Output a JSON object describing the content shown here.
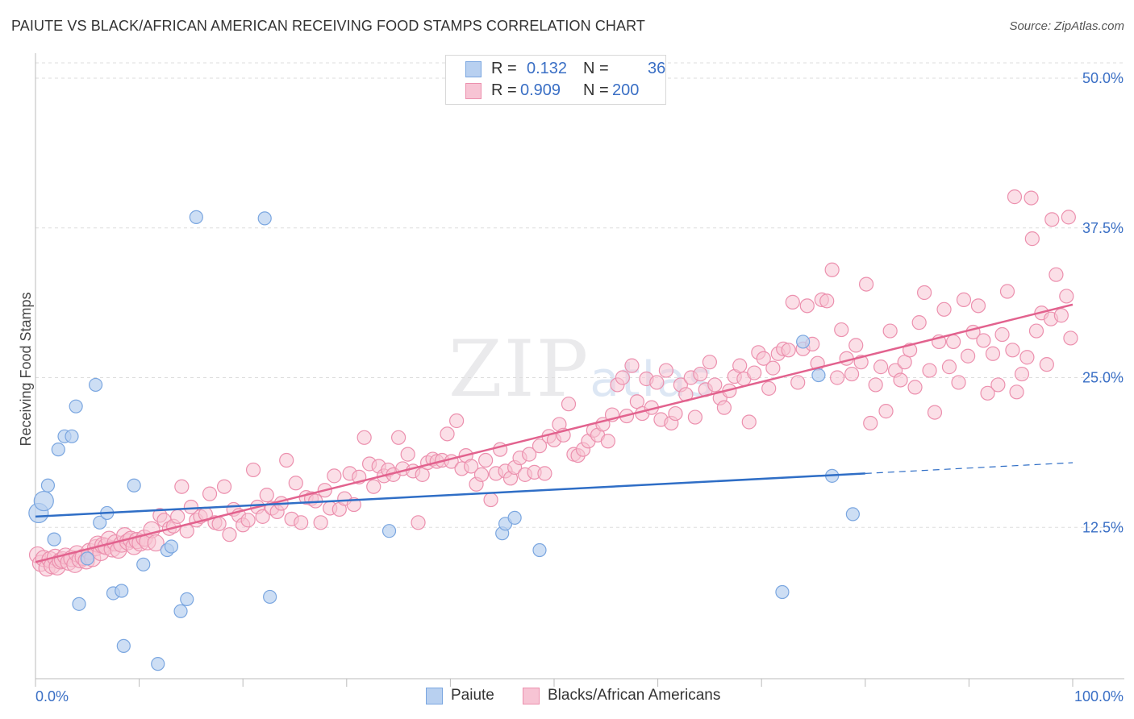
{
  "header": {
    "title": "PAIUTE VS BLACK/AFRICAN AMERICAN RECEIVING FOOD STAMPS CORRELATION CHART",
    "source": "Source: ZipAtlas.com"
  },
  "watermark": {
    "zip": "ZIP",
    "atlas": "atlas"
  },
  "legend": {
    "rows": [
      {
        "r_label": "R =",
        "r_value": "0.132",
        "n_label": "N =",
        "n_value": "36",
        "fill": "#b8d0f0",
        "stroke": "#7aa6e0"
      },
      {
        "r_label": "R =",
        "r_value": "0.909",
        "n_label": "N =",
        "n_value": "200",
        "fill": "#f7c4d4",
        "stroke": "#ec90ae"
      }
    ]
  },
  "bottom_legend": [
    {
      "label": "Paiute",
      "fill": "#b8d0f0",
      "stroke": "#7aa6e0"
    },
    {
      "label": "Blacks/African Americans",
      "fill": "#f7c4d4",
      "stroke": "#ec90ae"
    }
  ],
  "chart_data": {
    "type": "scatter",
    "title": "PAIUTE VS BLACK/AFRICAN AMERICAN RECEIVING FOOD STAMPS CORRELATION CHART",
    "xlabel": "",
    "ylabel": "Receiving Food Stamps",
    "xlim": [
      0,
      100
    ],
    "ylim": [
      0,
      50
    ],
    "x_tick_labels": [
      "0.0%",
      "100.0%"
    ],
    "y_ticks": [
      12.5,
      25.0,
      37.5,
      50.0
    ],
    "y_tick_labels": [
      "12.5%",
      "25.0%",
      "37.5%",
      "50.0%"
    ],
    "grid": "horizontal dashed",
    "legend_position": "top-center",
    "colors": {
      "paiute_fill": "#b8d0f0",
      "paiute_stroke": "#7aa6e0",
      "paiute_line": "#2f6ec6",
      "black_fill": "#f7c4d4",
      "black_stroke": "#ec90ae",
      "black_line": "#e2628e",
      "axis_text": "#3a6fc5",
      "grid": "#dddddd"
    },
    "series": [
      {
        "name": "Paiute",
        "r": 0.132,
        "n": 36,
        "trend": {
          "x": [
            0,
            80,
            100
          ],
          "y": [
            13.4,
            17.0,
            17.9
          ],
          "solid_until": 80
        },
        "points": [
          [
            0.3,
            13.7
          ],
          [
            0.8,
            14.7
          ],
          [
            1.2,
            16.0
          ],
          [
            1.8,
            11.5
          ],
          [
            2.2,
            19.0
          ],
          [
            2.8,
            20.1
          ],
          [
            3.5,
            20.1
          ],
          [
            3.9,
            22.6
          ],
          [
            4.2,
            6.1
          ],
          [
            5.0,
            9.9
          ],
          [
            5.8,
            24.4
          ],
          [
            6.2,
            12.9
          ],
          [
            6.9,
            13.7
          ],
          [
            7.5,
            7.0
          ],
          [
            8.3,
            7.2
          ],
          [
            8.5,
            2.6
          ],
          [
            9.5,
            16.0
          ],
          [
            10.4,
            9.4
          ],
          [
            11.8,
            1.1
          ],
          [
            12.7,
            10.6
          ],
          [
            13.1,
            10.9
          ],
          [
            14.0,
            5.5
          ],
          [
            14.6,
            6.5
          ],
          [
            15.5,
            38.4
          ],
          [
            22.1,
            38.3
          ],
          [
            22.6,
            6.7
          ],
          [
            34.1,
            12.2
          ],
          [
            45.0,
            12.0
          ],
          [
            45.3,
            12.8
          ],
          [
            46.2,
            13.3
          ],
          [
            48.6,
            10.6
          ],
          [
            72.0,
            7.1
          ],
          [
            74.0,
            28.0
          ],
          [
            75.5,
            25.2
          ],
          [
            76.8,
            16.8
          ],
          [
            78.8,
            13.6
          ]
        ]
      },
      {
        "name": "Blacks/African Americans",
        "r": 0.909,
        "n": 200,
        "trend": {
          "x": [
            0,
            100
          ],
          "y": [
            9.6,
            31.1
          ]
        },
        "points": [
          [
            0.2,
            10.2
          ],
          [
            0.5,
            9.5
          ],
          [
            0.8,
            9.9
          ],
          [
            1.1,
            9.1
          ],
          [
            1.4,
            9.8
          ],
          [
            1.6,
            9.3
          ],
          [
            1.9,
            10.0
          ],
          [
            2.1,
            9.2
          ],
          [
            2.4,
            9.7
          ],
          [
            2.6,
            9.8
          ],
          [
            2.9,
            10.1
          ],
          [
            3.2,
            9.6
          ],
          [
            3.5,
            9.9
          ],
          [
            3.8,
            9.4
          ],
          [
            4.0,
            10.3
          ],
          [
            4.3,
            9.8
          ],
          [
            4.6,
            10.0
          ],
          [
            4.9,
            9.7
          ],
          [
            5.2,
            10.5
          ],
          [
            5.5,
            9.9
          ],
          [
            5.8,
            10.8
          ],
          [
            6.0,
            11.1
          ],
          [
            6.3,
            10.4
          ],
          [
            6.5,
            11.0
          ],
          [
            6.8,
            10.9
          ],
          [
            7.1,
            11.5
          ],
          [
            7.4,
            10.7
          ],
          [
            7.7,
            11.2
          ],
          [
            8.0,
            10.6
          ],
          [
            8.3,
            11.1
          ],
          [
            8.6,
            11.8
          ],
          [
            8.9,
            11.3
          ],
          [
            9.2,
            11.5
          ],
          [
            9.5,
            10.9
          ],
          [
            9.8,
            11.4
          ],
          [
            10.1,
            11.2
          ],
          [
            10.5,
            11.6
          ],
          [
            10.8,
            11.3
          ],
          [
            11.2,
            12.3
          ],
          [
            11.6,
            11.2
          ],
          [
            12.0,
            13.5
          ],
          [
            12.4,
            13.1
          ],
          [
            12.9,
            12.4
          ],
          [
            13.3,
            12.6
          ],
          [
            13.7,
            13.4
          ],
          [
            14.1,
            15.9
          ],
          [
            14.6,
            12.2
          ],
          [
            15.0,
            14.2
          ],
          [
            15.5,
            13.1
          ],
          [
            15.9,
            13.4
          ],
          [
            16.4,
            13.6
          ],
          [
            16.8,
            15.3
          ],
          [
            17.3,
            12.9
          ],
          [
            17.7,
            12.8
          ],
          [
            18.2,
            15.9
          ],
          [
            18.7,
            11.9
          ],
          [
            19.1,
            14.0
          ],
          [
            19.6,
            13.5
          ],
          [
            20.0,
            12.7
          ],
          [
            20.5,
            13.1
          ],
          [
            21.0,
            17.3
          ],
          [
            21.4,
            14.2
          ],
          [
            21.9,
            13.4
          ],
          [
            22.3,
            15.2
          ],
          [
            22.8,
            14.1
          ],
          [
            23.3,
            13.8
          ],
          [
            23.7,
            14.5
          ],
          [
            24.2,
            18.1
          ],
          [
            24.7,
            13.2
          ],
          [
            25.1,
            16.2
          ],
          [
            25.6,
            12.9
          ],
          [
            26.1,
            15.0
          ],
          [
            26.6,
            14.9
          ],
          [
            27.0,
            14.7
          ],
          [
            27.5,
            12.9
          ],
          [
            27.9,
            15.6
          ],
          [
            28.4,
            14.1
          ],
          [
            28.8,
            16.8
          ],
          [
            29.3,
            14.0
          ],
          [
            29.8,
            14.9
          ],
          [
            30.3,
            17.0
          ],
          [
            30.7,
            14.4
          ],
          [
            31.2,
            16.7
          ],
          [
            31.7,
            20.0
          ],
          [
            32.2,
            17.8
          ],
          [
            32.6,
            15.9
          ],
          [
            33.1,
            17.6
          ],
          [
            33.6,
            16.8
          ],
          [
            34.0,
            17.3
          ],
          [
            34.5,
            16.9
          ],
          [
            35.0,
            20.0
          ],
          [
            35.4,
            17.4
          ],
          [
            35.9,
            18.6
          ],
          [
            36.4,
            17.2
          ],
          [
            36.9,
            12.9
          ],
          [
            37.3,
            16.9
          ],
          [
            37.8,
            17.9
          ],
          [
            38.3,
            18.2
          ],
          [
            38.7,
            18.0
          ],
          [
            39.2,
            18.1
          ],
          [
            39.7,
            20.3
          ],
          [
            40.1,
            18.0
          ],
          [
            40.6,
            21.4
          ],
          [
            41.1,
            17.4
          ],
          [
            41.5,
            18.5
          ],
          [
            42.0,
            17.6
          ],
          [
            42.5,
            16.1
          ],
          [
            43.0,
            16.9
          ],
          [
            43.4,
            18.1
          ],
          [
            43.9,
            14.8
          ],
          [
            44.4,
            17.0
          ],
          [
            44.8,
            19.0
          ],
          [
            45.3,
            17.2
          ],
          [
            45.8,
            16.6
          ],
          [
            46.2,
            17.5
          ],
          [
            46.7,
            18.3
          ],
          [
            47.2,
            16.9
          ],
          [
            47.6,
            18.6
          ],
          [
            48.1,
            17.1
          ],
          [
            48.6,
            19.3
          ],
          [
            49.1,
            17.0
          ],
          [
            49.5,
            20.1
          ],
          [
            50.0,
            19.8
          ],
          [
            50.5,
            21.1
          ],
          [
            50.9,
            20.2
          ],
          [
            51.4,
            22.8
          ],
          [
            51.9,
            18.6
          ],
          [
            52.3,
            18.5
          ],
          [
            52.8,
            19.0
          ],
          [
            53.3,
            19.7
          ],
          [
            53.8,
            20.6
          ],
          [
            54.2,
            20.2
          ],
          [
            54.7,
            21.1
          ],
          [
            55.2,
            19.7
          ],
          [
            55.6,
            21.9
          ],
          [
            56.1,
            24.4
          ],
          [
            56.6,
            25.0
          ],
          [
            57.0,
            21.8
          ],
          [
            57.5,
            26.0
          ],
          [
            58.0,
            23.0
          ],
          [
            58.5,
            22.0
          ],
          [
            58.9,
            24.9
          ],
          [
            59.4,
            22.5
          ],
          [
            59.9,
            24.6
          ],
          [
            60.3,
            21.5
          ],
          [
            60.8,
            25.6
          ],
          [
            61.3,
            21.2
          ],
          [
            61.7,
            22.0
          ],
          [
            62.2,
            24.4
          ],
          [
            62.7,
            23.6
          ],
          [
            63.2,
            25.0
          ],
          [
            63.6,
            21.7
          ],
          [
            64.1,
            25.3
          ],
          [
            64.6,
            24.0
          ],
          [
            65.0,
            26.3
          ],
          [
            65.5,
            24.4
          ],
          [
            66.0,
            23.3
          ],
          [
            66.4,
            22.5
          ],
          [
            66.9,
            23.9
          ],
          [
            67.4,
            25.1
          ],
          [
            67.9,
            26.0
          ],
          [
            68.3,
            24.9
          ],
          [
            68.8,
            21.3
          ],
          [
            69.3,
            25.4
          ],
          [
            69.7,
            27.1
          ],
          [
            70.2,
            26.6
          ],
          [
            70.7,
            24.1
          ],
          [
            71.1,
            25.8
          ],
          [
            71.6,
            27.0
          ],
          [
            72.1,
            27.4
          ],
          [
            72.6,
            27.3
          ],
          [
            73.0,
            31.3
          ],
          [
            73.5,
            24.6
          ],
          [
            74.0,
            27.4
          ],
          [
            74.4,
            31.0
          ],
          [
            74.9,
            27.8
          ],
          [
            75.4,
            26.2
          ],
          [
            75.8,
            31.5
          ],
          [
            76.3,
            31.4
          ],
          [
            76.8,
            34.0
          ],
          [
            77.3,
            25.0
          ],
          [
            77.7,
            29.0
          ],
          [
            78.2,
            26.6
          ],
          [
            78.7,
            25.3
          ],
          [
            79.1,
            27.7
          ],
          [
            79.6,
            26.3
          ],
          [
            80.1,
            32.8
          ],
          [
            80.5,
            21.2
          ],
          [
            81.0,
            24.4
          ],
          [
            81.5,
            25.9
          ],
          [
            82.0,
            22.2
          ],
          [
            82.4,
            28.9
          ],
          [
            82.9,
            25.6
          ],
          [
            83.4,
            24.8
          ],
          [
            83.8,
            26.3
          ],
          [
            84.3,
            27.3
          ],
          [
            84.8,
            24.2
          ],
          [
            85.2,
            29.6
          ],
          [
            85.7,
            32.1
          ],
          [
            86.2,
            25.6
          ],
          [
            86.7,
            22.1
          ],
          [
            87.1,
            28.0
          ],
          [
            87.6,
            30.7
          ],
          [
            88.1,
            25.9
          ],
          [
            88.5,
            28.0
          ],
          [
            89.0,
            24.6
          ],
          [
            89.5,
            31.5
          ],
          [
            89.9,
            26.8
          ],
          [
            90.4,
            28.8
          ],
          [
            90.9,
            31.0
          ],
          [
            91.4,
            28.1
          ],
          [
            91.8,
            23.7
          ],
          [
            92.3,
            27.0
          ],
          [
            92.8,
            24.4
          ],
          [
            93.2,
            28.6
          ],
          [
            93.7,
            32.2
          ],
          [
            94.2,
            27.3
          ],
          [
            94.6,
            23.8
          ],
          [
            95.1,
            25.3
          ],
          [
            95.6,
            26.7
          ],
          [
            96.1,
            36.6
          ],
          [
            96.5,
            28.9
          ],
          [
            97.0,
            30.4
          ],
          [
            97.5,
            26.1
          ],
          [
            97.9,
            29.9
          ],
          [
            98.4,
            33.6
          ],
          [
            98.9,
            30.2
          ],
          [
            99.4,
            31.8
          ],
          [
            99.8,
            28.3
          ],
          [
            94.4,
            40.1
          ],
          [
            96.0,
            40.0
          ],
          [
            98.0,
            38.2
          ],
          [
            99.6,
            38.4
          ]
        ]
      }
    ]
  }
}
